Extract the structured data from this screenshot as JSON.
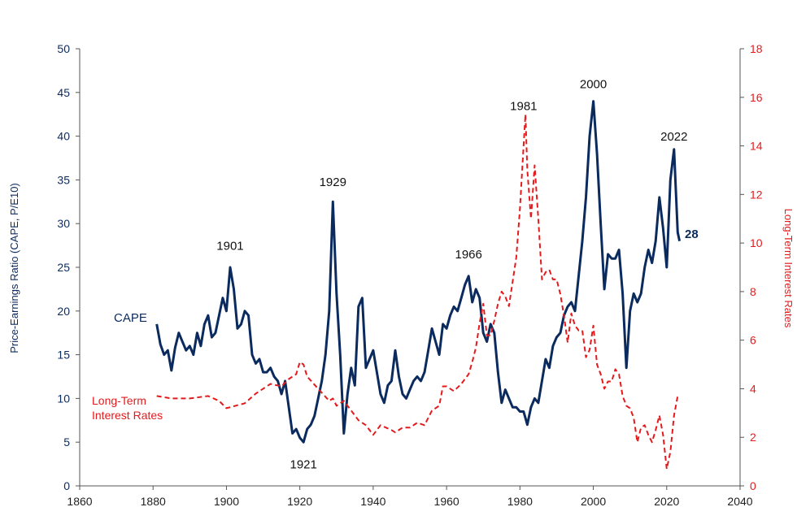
{
  "chart_data": {
    "type": "line",
    "xlabel": "",
    "ylabel": "Price-Earnings Ratio (CAPE, P/E10)",
    "y2label": "Long-Term Interest Rates",
    "xlim": [
      1860,
      2040
    ],
    "ylim": [
      0,
      50
    ],
    "y2lim": [
      0,
      18
    ],
    "x_ticks": [
      1860,
      1880,
      1900,
      1920,
      1940,
      1960,
      1980,
      2000,
      2020,
      2040
    ],
    "y_ticks": [
      0,
      5,
      10,
      15,
      20,
      25,
      30,
      35,
      40,
      45,
      50
    ],
    "y2_ticks": [
      0,
      2,
      4,
      6,
      8,
      10,
      12,
      14,
      16,
      18
    ],
    "grid": false,
    "series": [
      {
        "name": "CAPE",
        "axis": "left",
        "color": "#0b2a5e",
        "style": "solid",
        "points": [
          [
            1881,
            18.5
          ],
          [
            1882,
            16.2
          ],
          [
            1883,
            15.0
          ],
          [
            1884,
            15.5
          ],
          [
            1885,
            13.2
          ],
          [
            1886,
            15.8
          ],
          [
            1887,
            17.5
          ],
          [
            1888,
            16.5
          ],
          [
            1889,
            15.5
          ],
          [
            1890,
            16.0
          ],
          [
            1891,
            15.0
          ],
          [
            1892,
            17.5
          ],
          [
            1893,
            16.0
          ],
          [
            1894,
            18.5
          ],
          [
            1895,
            19.5
          ],
          [
            1896,
            17.0
          ],
          [
            1897,
            17.5
          ],
          [
            1898,
            19.5
          ],
          [
            1899,
            21.5
          ],
          [
            1900,
            20.0
          ],
          [
            1901,
            25.0
          ],
          [
            1902,
            22.5
          ],
          [
            1903,
            18.0
          ],
          [
            1904,
            18.5
          ],
          [
            1905,
            20.0
          ],
          [
            1906,
            19.5
          ],
          [
            1907,
            15.0
          ],
          [
            1908,
            14.0
          ],
          [
            1909,
            14.5
          ],
          [
            1910,
            13.0
          ],
          [
            1911,
            13.0
          ],
          [
            1912,
            13.5
          ],
          [
            1913,
            12.5
          ],
          [
            1914,
            12.0
          ],
          [
            1915,
            10.5
          ],
          [
            1916,
            12.0
          ],
          [
            1917,
            9.0
          ],
          [
            1918,
            6.0
          ],
          [
            1919,
            6.5
          ],
          [
            1920,
            5.5
          ],
          [
            1921,
            5.0
          ],
          [
            1922,
            6.5
          ],
          [
            1923,
            7.0
          ],
          [
            1924,
            8.0
          ],
          [
            1925,
            10.0
          ],
          [
            1926,
            12.0
          ],
          [
            1927,
            15.0
          ],
          [
            1928,
            20.0
          ],
          [
            1929,
            32.5
          ],
          [
            1930,
            22.0
          ],
          [
            1931,
            15.0
          ],
          [
            1932,
            6.0
          ],
          [
            1933,
            10.5
          ],
          [
            1934,
            13.5
          ],
          [
            1935,
            11.5
          ],
          [
            1936,
            20.5
          ],
          [
            1937,
            21.5
          ],
          [
            1938,
            13.5
          ],
          [
            1939,
            14.5
          ],
          [
            1940,
            15.5
          ],
          [
            1941,
            13.0
          ],
          [
            1942,
            10.5
          ],
          [
            1943,
            9.5
          ],
          [
            1944,
            11.5
          ],
          [
            1945,
            12.0
          ],
          [
            1946,
            15.5
          ],
          [
            1947,
            12.5
          ],
          [
            1948,
            10.5
          ],
          [
            1949,
            10.0
          ],
          [
            1950,
            11.0
          ],
          [
            1951,
            12.0
          ],
          [
            1952,
            12.5
          ],
          [
            1953,
            12.0
          ],
          [
            1954,
            13.0
          ],
          [
            1955,
            15.5
          ],
          [
            1956,
            18.0
          ],
          [
            1957,
            16.5
          ],
          [
            1958,
            15.0
          ],
          [
            1959,
            18.5
          ],
          [
            1960,
            18.0
          ],
          [
            1961,
            19.5
          ],
          [
            1962,
            20.5
          ],
          [
            1963,
            20.0
          ],
          [
            1964,
            21.5
          ],
          [
            1965,
            23.0
          ],
          [
            1966,
            24.0
          ],
          [
            1967,
            21.0
          ],
          [
            1968,
            22.5
          ],
          [
            1969,
            21.5
          ],
          [
            1970,
            17.5
          ],
          [
            1971,
            16.5
          ],
          [
            1972,
            18.5
          ],
          [
            1973,
            17.5
          ],
          [
            1974,
            13.0
          ],
          [
            1975,
            9.5
          ],
          [
            1976,
            11.0
          ],
          [
            1977,
            10.0
          ],
          [
            1978,
            9.0
          ],
          [
            1979,
            9.0
          ],
          [
            1980,
            8.5
          ],
          [
            1981,
            8.5
          ],
          [
            1982,
            7.0
          ],
          [
            1983,
            9.0
          ],
          [
            1984,
            10.0
          ],
          [
            1985,
            9.5
          ],
          [
            1986,
            12.0
          ],
          [
            1987,
            14.5
          ],
          [
            1988,
            13.5
          ],
          [
            1989,
            16.0
          ],
          [
            1990,
            17.0
          ],
          [
            1991,
            17.5
          ],
          [
            1992,
            19.5
          ],
          [
            1993,
            20.5
          ],
          [
            1994,
            21.0
          ],
          [
            1995,
            20.0
          ],
          [
            1996,
            24.0
          ],
          [
            1997,
            28.0
          ],
          [
            1998,
            33.0
          ],
          [
            1999,
            40.0
          ],
          [
            2000,
            44.0
          ],
          [
            2001,
            38.0
          ],
          [
            2002,
            30.0
          ],
          [
            2003,
            22.5
          ],
          [
            2004,
            26.5
          ],
          [
            2005,
            26.0
          ],
          [
            2006,
            26.0
          ],
          [
            2007,
            27.0
          ],
          [
            2008,
            22.0
          ],
          [
            2009,
            13.5
          ],
          [
            2010,
            20.0
          ],
          [
            2011,
            22.0
          ],
          [
            2012,
            21.0
          ],
          [
            2013,
            22.0
          ],
          [
            2014,
            25.0
          ],
          [
            2015,
            27.0
          ],
          [
            2016,
            25.5
          ],
          [
            2017,
            28.0
          ],
          [
            2018,
            33.0
          ],
          [
            2019,
            29.5
          ],
          [
            2020,
            25.0
          ],
          [
            2021,
            35.0
          ],
          [
            2022,
            38.5
          ],
          [
            2023,
            29.0
          ],
          [
            2023.5,
            28.0
          ]
        ]
      },
      {
        "name": "Long-Term Interest Rates",
        "axis": "right",
        "color": "#e41a1c",
        "style": "dashed",
        "points": [
          [
            1881,
            3.7
          ],
          [
            1885,
            3.6
          ],
          [
            1890,
            3.6
          ],
          [
            1895,
            3.7
          ],
          [
            1898,
            3.5
          ],
          [
            1900,
            3.2
          ],
          [
            1905,
            3.4
          ],
          [
            1908,
            3.8
          ],
          [
            1910,
            4.0
          ],
          [
            1912,
            4.2
          ],
          [
            1915,
            4.1
          ],
          [
            1917,
            4.4
          ],
          [
            1919,
            4.6
          ],
          [
            1920,
            5.1
          ],
          [
            1921,
            5.0
          ],
          [
            1922,
            4.5
          ],
          [
            1925,
            4.0
          ],
          [
            1928,
            3.5
          ],
          [
            1929,
            3.6
          ],
          [
            1930,
            3.3
          ],
          [
            1932,
            3.5
          ],
          [
            1934,
            3.1
          ],
          [
            1936,
            2.7
          ],
          [
            1938,
            2.5
          ],
          [
            1940,
            2.1
          ],
          [
            1941,
            2.3
          ],
          [
            1942,
            2.5
          ],
          [
            1945,
            2.3
          ],
          [
            1946,
            2.2
          ],
          [
            1948,
            2.4
          ],
          [
            1950,
            2.4
          ],
          [
            1952,
            2.6
          ],
          [
            1954,
            2.5
          ],
          [
            1956,
            3.1
          ],
          [
            1958,
            3.3
          ],
          [
            1959,
            4.1
          ],
          [
            1960,
            4.1
          ],
          [
            1962,
            3.9
          ],
          [
            1964,
            4.2
          ],
          [
            1966,
            4.6
          ],
          [
            1967,
            5.1
          ],
          [
            1968,
            5.7
          ],
          [
            1969,
            6.7
          ],
          [
            1970,
            7.5
          ],
          [
            1971,
            6.2
          ],
          [
            1972,
            6.2
          ],
          [
            1973,
            6.8
          ],
          [
            1974,
            7.5
          ],
          [
            1975,
            8.0
          ],
          [
            1976,
            7.8
          ],
          [
            1977,
            7.4
          ],
          [
            1978,
            8.4
          ],
          [
            1979,
            9.4
          ],
          [
            1980,
            11.4
          ],
          [
            1981,
            14.0
          ],
          [
            1981.5,
            15.3
          ],
          [
            1982,
            13.0
          ],
          [
            1983,
            11.0
          ],
          [
            1984,
            13.2
          ],
          [
            1985,
            11.0
          ],
          [
            1986,
            8.5
          ],
          [
            1987,
            8.8
          ],
          [
            1988,
            8.9
          ],
          [
            1989,
            8.5
          ],
          [
            1990,
            8.5
          ],
          [
            1991,
            7.9
          ],
          [
            1992,
            7.0
          ],
          [
            1993,
            5.9
          ],
          [
            1994,
            7.1
          ],
          [
            1995,
            6.6
          ],
          [
            1996,
            6.4
          ],
          [
            1997,
            6.4
          ],
          [
            1998,
            5.3
          ],
          [
            1999,
            5.6
          ],
          [
            2000,
            6.6
          ],
          [
            2001,
            5.0
          ],
          [
            2002,
            4.6
          ],
          [
            2003,
            4.0
          ],
          [
            2004,
            4.3
          ],
          [
            2005,
            4.3
          ],
          [
            2006,
            4.8
          ],
          [
            2007,
            4.6
          ],
          [
            2008,
            3.7
          ],
          [
            2009,
            3.3
          ],
          [
            2010,
            3.2
          ],
          [
            2011,
            2.8
          ],
          [
            2012,
            1.8
          ],
          [
            2013,
            2.4
          ],
          [
            2014,
            2.5
          ],
          [
            2015,
            2.1
          ],
          [
            2016,
            1.8
          ],
          [
            2017,
            2.3
          ],
          [
            2018,
            2.9
          ],
          [
            2019,
            2.1
          ],
          [
            2020,
            0.7
          ],
          [
            2021,
            1.4
          ],
          [
            2022,
            2.9
          ],
          [
            2023,
            3.7
          ]
        ]
      }
    ],
    "annotations": [
      {
        "text": "1901",
        "x": 1901,
        "y": 27.0
      },
      {
        "text": "1921",
        "x": 1921,
        "y": 2.0
      },
      {
        "text": "1929",
        "x": 1929,
        "y": 34.3
      },
      {
        "text": "1966",
        "x": 1966,
        "y": 26.0
      },
      {
        "text": "1981",
        "x": 1981,
        "y": 43.0
      },
      {
        "text": "2000",
        "x": 2000,
        "y": 45.5
      },
      {
        "text": "2022",
        "x": 2022,
        "y": 39.5
      }
    ],
    "series_labels": {
      "cape": "CAPE",
      "rate_line1": "Long-Term",
      "rate_line2": "Interest Rates"
    },
    "last_value_label": "28"
  }
}
